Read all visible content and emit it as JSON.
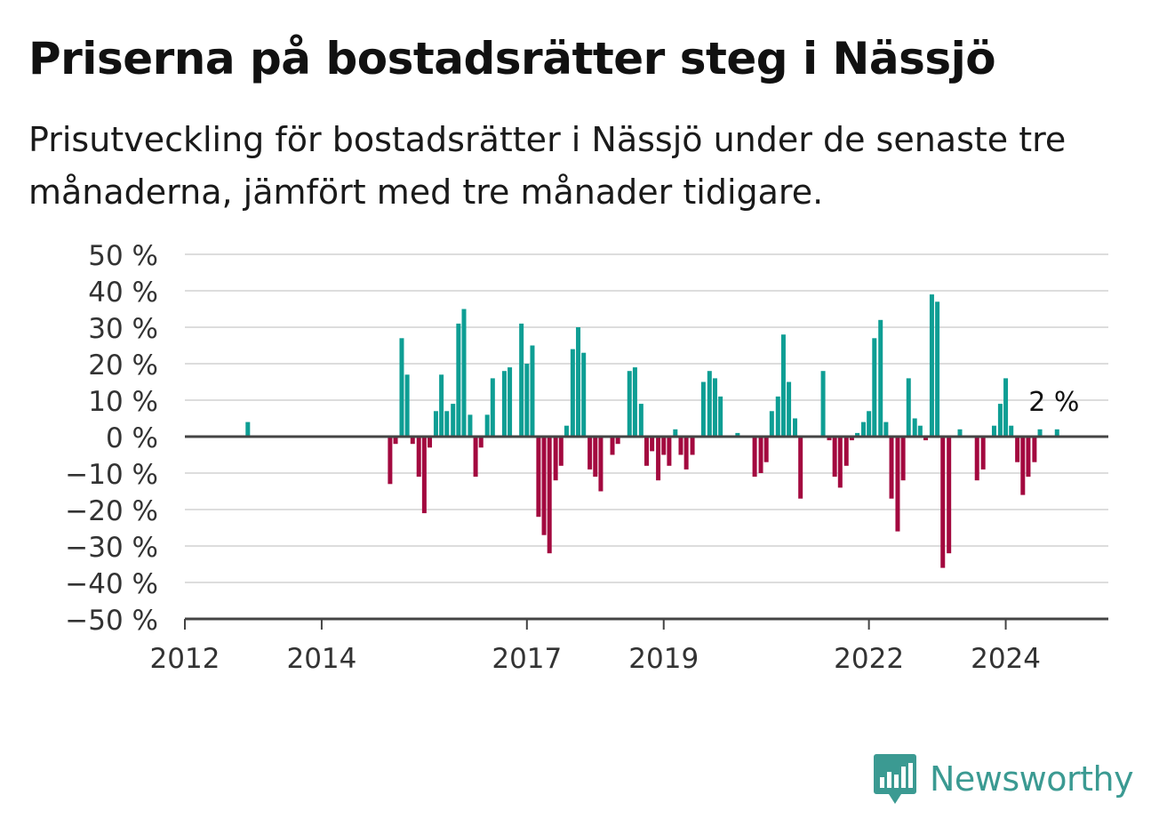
{
  "title": "Priserna på bostadsrätter steg i Nässjö",
  "subtitle": "Prisutveckling för bostadsrätter i Nässjö under de senaste tre månaderna, jämfört med tre månader tidigare.",
  "logo": {
    "text": "Newsworthy",
    "icon": "bar-chart-speech-bubble-icon"
  },
  "colors": {
    "positive": "#0e9e94",
    "negative": "#a3093f",
    "grid": "#dddddd",
    "axis": "#444444",
    "brand": "#3b9a92"
  },
  "chart_data": {
    "type": "bar",
    "title": "",
    "xlabel": "",
    "ylabel": "",
    "ylim": [
      -50,
      50
    ],
    "xlim": [
      2012.0,
      2025.5
    ],
    "y_ticks": [
      50,
      40,
      30,
      20,
      10,
      0,
      -10,
      -20,
      -30,
      -40,
      -50
    ],
    "y_tick_labels": [
      "50 %",
      "40 %",
      "30 %",
      "20 %",
      "10 %",
      "0 %",
      "−10 %",
      "−20 %",
      "−30 %",
      "−40 %",
      "−50 %"
    ],
    "x_ticks": [
      2012,
      2014,
      2017,
      2019,
      2022,
      2024
    ],
    "x_tick_labels": [
      "2012",
      "2014",
      "2017",
      "2019",
      "2022",
      "2024"
    ],
    "grid": true,
    "annotation": {
      "text": "2 %",
      "x": 2024.75,
      "y": 2
    },
    "x": [
      2012.92,
      2015.0,
      2015.08,
      2015.17,
      2015.25,
      2015.33,
      2015.42,
      2015.5,
      2015.58,
      2015.67,
      2015.75,
      2015.83,
      2015.92,
      2016.0,
      2016.08,
      2016.17,
      2016.25,
      2016.33,
      2016.42,
      2016.5,
      2016.58,
      2016.67,
      2016.75,
      2016.83,
      2016.92,
      2017.0,
      2017.08,
      2017.17,
      2017.25,
      2017.33,
      2017.42,
      2017.5,
      2017.58,
      2017.67,
      2017.75,
      2017.83,
      2017.92,
      2018.0,
      2018.08,
      2018.17,
      2018.25,
      2018.33,
      2018.42,
      2018.5,
      2018.58,
      2018.67,
      2018.75,
      2018.83,
      2018.92,
      2019.0,
      2019.08,
      2019.17,
      2019.25,
      2019.33,
      2019.42,
      2019.5,
      2019.58,
      2019.67,
      2019.75,
      2019.83,
      2020.08,
      2020.33,
      2020.42,
      2020.5,
      2020.58,
      2020.67,
      2020.75,
      2020.83,
      2020.92,
      2021.0,
      2021.08,
      2021.33,
      2021.42,
      2021.5,
      2021.58,
      2021.67,
      2021.75,
      2021.83,
      2021.92,
      2022.0,
      2022.08,
      2022.17,
      2022.25,
      2022.33,
      2022.42,
      2022.5,
      2022.58,
      2022.67,
      2022.75,
      2022.83,
      2022.92,
      2023.0,
      2023.08,
      2023.17,
      2023.25,
      2023.33,
      2023.42,
      2023.58,
      2023.67,
      2023.83,
      2023.92,
      2024.0,
      2024.08,
      2024.17,
      2024.25,
      2024.33,
      2024.42,
      2024.5,
      2024.58,
      2024.67,
      2024.75
    ],
    "values": [
      4,
      -13,
      -2,
      27,
      17,
      -2,
      -11,
      -21,
      -3,
      7,
      17,
      7,
      9,
      31,
      35,
      6,
      -11,
      -3,
      6,
      16,
      0,
      18,
      19,
      0,
      31,
      20,
      25,
      -22,
      -27,
      -32,
      -12,
      -8,
      3,
      24,
      30,
      23,
      -9,
      -11,
      -15,
      0,
      -5,
      -2,
      0,
      18,
      19,
      9,
      -8,
      -4,
      -12,
      -5,
      -8,
      2,
      -5,
      -9,
      -5,
      0,
      15,
      18,
      16,
      11,
      1,
      -11,
      -10,
      -7,
      7,
      11,
      28,
      15,
      5,
      -17,
      0,
      18,
      -1,
      -11,
      -14,
      -8,
      -1,
      1,
      4,
      7,
      27,
      32,
      4,
      -17,
      -26,
      -12,
      16,
      5,
      3,
      -1,
      39,
      37,
      -36,
      -32,
      0,
      2,
      0,
      -12,
      -9,
      3,
      9,
      16,
      3,
      -7,
      -16,
      -11,
      -7,
      2,
      0,
      0,
      2
    ]
  }
}
